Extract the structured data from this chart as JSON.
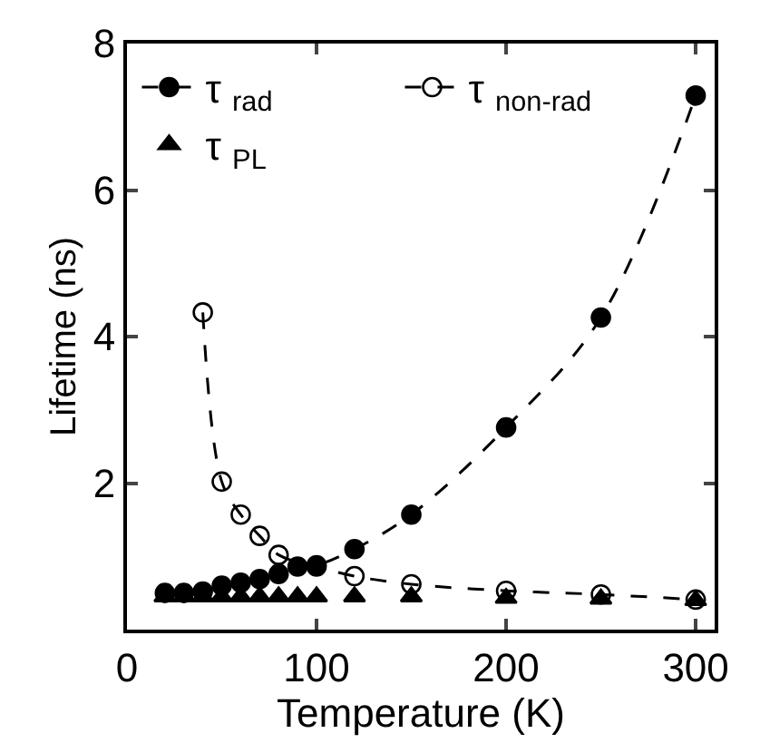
{
  "chart_data": {
    "type": "line",
    "xlabel": "Temperature (K)",
    "ylabel": "Lifetime (ns)",
    "xlim": [
      0,
      310
    ],
    "ylim": [
      0,
      8
    ],
    "xticks": [
      0,
      100,
      200,
      300
    ],
    "yticks": [
      {
        "value": 0,
        "label": null
      },
      2,
      4,
      6,
      8
    ],
    "legend": "top left",
    "series": [
      {
        "name": "τ$_{rad}$",
        "color": "#000000",
        "marker": "circle",
        "line_style": "dashed",
        "x": [
          20,
          30,
          40,
          50,
          60,
          70,
          80,
          90,
          100,
          120,
          150,
          200,
          250,
          300
        ],
        "values": [
          0.5,
          0.5,
          0.52,
          0.6,
          0.64,
          0.69,
          0.76,
          0.86,
          0.88,
          1.1,
          1.57,
          2.76,
          4.26,
          7.29
        ]
      },
      {
        "name": "τ$_{non-rad}$",
        "color": "#000000",
        "marker": "circle-open",
        "line_style": "dashed",
        "x": [
          40,
          50,
          60,
          70,
          80,
          100,
          120,
          150,
          200,
          250,
          300
        ],
        "values": [
          4.33,
          2.02,
          1.57,
          1.28,
          1.02,
          0.86,
          0.73,
          0.62,
          0.53,
          0.48,
          0.41
        ]
      },
      {
        "name": "τ$_{PL}$",
        "color": "#000000",
        "type": "scatter",
        "marker": "triangle",
        "x": [
          20,
          30,
          40,
          50,
          60,
          70,
          80,
          90,
          100,
          120,
          150,
          200,
          250,
          300
        ],
        "values": [
          0.45,
          0.45,
          0.45,
          0.45,
          0.45,
          0.45,
          0.45,
          0.45,
          0.45,
          0.45,
          0.45,
          0.43,
          0.42,
          0.4
        ]
      }
    ]
  }
}
